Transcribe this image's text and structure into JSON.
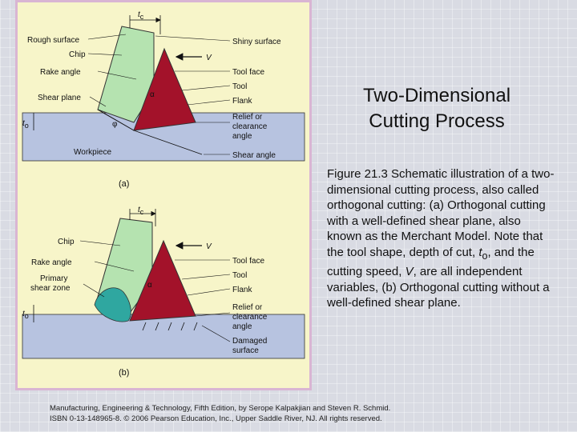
{
  "slide": {
    "title_line1": "Two-Dimensional",
    "title_line2": "Cutting Process",
    "caption_before_to": "Figure 21.3  Schematic illustration of a two-dimensional cutting process, also called orthogonal cutting:  (a) Orthogonal cutting with a well-defined shear plane, also known as the Merchant Model.  Note that the tool shape, depth of cut, ",
    "caption_to": "t",
    "caption_to_sub": "o",
    "caption_mid": ", and the cutting speed, ",
    "caption_v": "V",
    "caption_after": ", are all independent variables, (b)  Orthogonal cutting without a well-defined shear plane.",
    "footer_line1": "Manufacturing, Engineering & Technology, Fifth Edition, by Serope Kalpakjian and Steven R. Schmid.",
    "footer_line2": "ISBN 0-13-148965-8. © 2006 Pearson Education, Inc., Upper Saddle River, NJ.  All rights reserved."
  },
  "figure_a": {
    "tc": "t",
    "tc_sub": "c",
    "v": "V",
    "to": "t",
    "to_sub": "o",
    "alpha": "α",
    "phi": "φ",
    "panel_label": "(a)",
    "left_labels": [
      "Rough surface",
      "Chip",
      "Rake angle",
      "Shear plane",
      "Workpiece"
    ],
    "right_labels": [
      "Shiny surface",
      "Tool face",
      "Tool",
      "Flank",
      "Relief or",
      "clearance",
      "angle",
      "Shear angle"
    ]
  },
  "figure_b": {
    "tc": "t",
    "tc_sub": "c",
    "v": "V",
    "to": "t",
    "to_sub": "o",
    "alpha": "α",
    "panel_label": "(b)",
    "left_labels": [
      "Chip",
      "Rake angle",
      "Primary",
      "shear zone"
    ],
    "right_labels": [
      "Tool face",
      "Tool",
      "Flank",
      "Relief or",
      "clearance",
      "angle",
      "Damaged",
      "surface"
    ]
  },
  "colors": {
    "chip": "#b5e3b0",
    "tool": "#a3122a",
    "workpiece": "#b7c3e0",
    "shear_zone": "#2fa7a0",
    "panel_bg": "#f7f5c9"
  }
}
